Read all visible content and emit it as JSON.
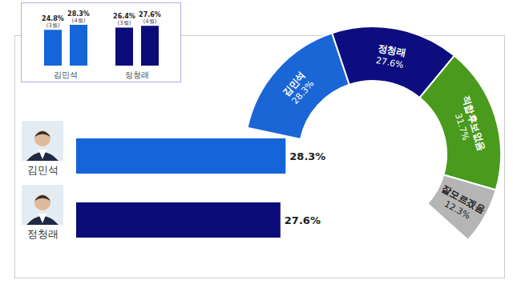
{
  "chart_data": [
    {
      "type": "bar",
      "categories": [
        "김민석",
        "정청래"
      ],
      "series": [
        {
          "name": "(3월)",
          "values": [
            24.8,
            26.4
          ],
          "value_labels": [
            "24.8%",
            "26.4%"
          ]
        },
        {
          "name": "(4월)",
          "values": [
            28.3,
            27.6
          ],
          "value_labels": [
            "28.3%",
            "27.6%"
          ]
        }
      ],
      "colors": [
        "#1565d8",
        "#0b0b7a"
      ],
      "ylim": [
        0,
        30
      ],
      "data_labels": true,
      "tick_labels": "x"
    },
    {
      "type": "bar",
      "orientation": "horizontal",
      "categories": [
        "김민석",
        "정청래"
      ],
      "values": [
        28.3,
        27.6
      ],
      "value_labels": [
        "28.3%",
        "27.6%"
      ],
      "colors": [
        "#1565d8",
        "#0b0b7a"
      ],
      "xlim": [
        0,
        30
      ],
      "data_labels": true,
      "tick_labels": "y"
    },
    {
      "type": "pie",
      "categories": [
        "김민석",
        "정청래",
        "적합후보없음",
        "잘모르겠음"
      ],
      "values": [
        28.3,
        27.6,
        31.7,
        12.3
      ],
      "value_labels": [
        "28.3%",
        "27.6%",
        "31.7%",
        "12.3%"
      ],
      "colors": [
        "#1a66d6",
        "#0d0d80",
        "#4a9a1e",
        "#b5b5b5"
      ],
      "data_labels": true
    }
  ]
}
